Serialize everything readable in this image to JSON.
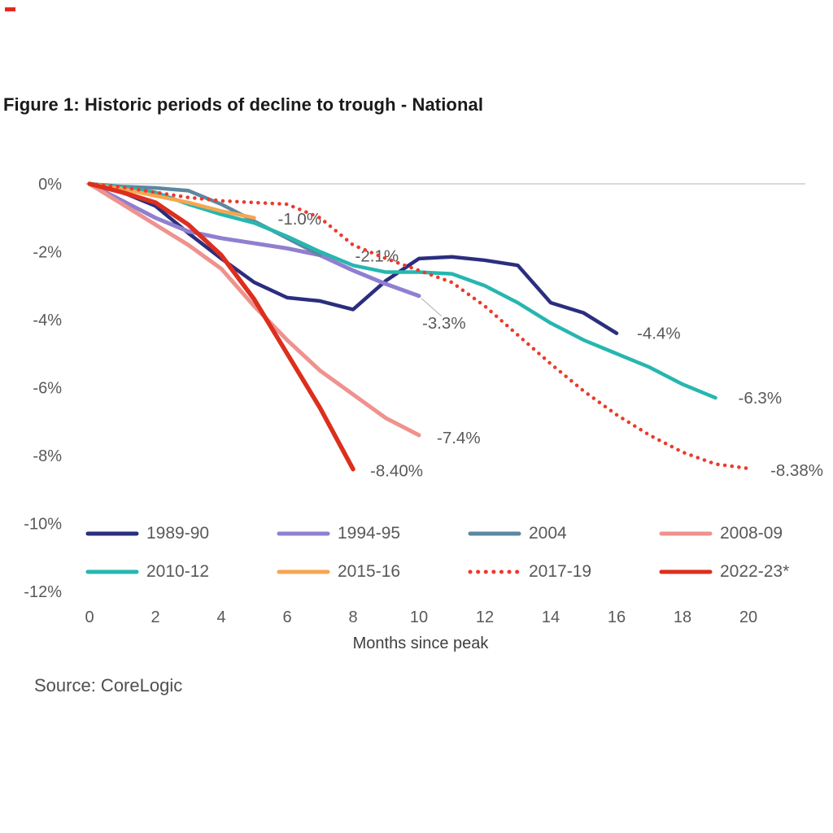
{
  "corner_mark": {
    "color": "#e8291d"
  },
  "title": "Figure 1: Historic periods of decline to trough - National",
  "source": "Source: CoreLogic",
  "chart_data": {
    "type": "line",
    "title": "Figure 1: Historic periods of decline to trough - National",
    "xlabel": "Months since peak",
    "ylabel": "",
    "xlim": [
      0,
      20
    ],
    "ylim": [
      -12,
      0
    ],
    "grid": "zero-line-only",
    "legend_position": "bottom",
    "zero_line_color": "#d9d9d9",
    "axis_text_color": "#595959",
    "x_ticks": [
      0,
      2,
      4,
      6,
      8,
      10,
      12,
      14,
      16,
      18,
      20
    ],
    "y_ticks": [
      "0%",
      "-2%",
      "-4%",
      "-6%",
      "-8%",
      "-10%",
      "-12%"
    ],
    "x_unit": "months since peak, step 1 per point starting at 0",
    "series": [
      {
        "name": "1989-90",
        "color": "#2b2e7e",
        "style": "solid",
        "width": 4.5,
        "values": [
          0,
          -0.25,
          -0.65,
          -1.45,
          -2.2,
          -2.9,
          -3.35,
          -3.45,
          -3.7,
          -2.85,
          -2.2,
          -2.15,
          -2.25,
          -2.4,
          -3.5,
          -3.8,
          -4.4
        ],
        "end_label": "-4.4%",
        "label_dx": 25,
        "label_dy": 0,
        "leader": false
      },
      {
        "name": "1994-95",
        "color": "#907fd0",
        "style": "solid",
        "width": 5,
        "values": [
          0,
          -0.5,
          -1.0,
          -1.4,
          -1.6,
          -1.75,
          -1.9,
          -2.1,
          -2.55,
          -2.95,
          -3.3
        ],
        "end_label": "-3.3%",
        "label_dx": 4,
        "label_dy": 33,
        "leader": true
      },
      {
        "name": "2004",
        "color": "#5d87a0",
        "style": "solid",
        "width": 4.5,
        "values": [
          0,
          -0.08,
          -0.12,
          -0.2,
          -0.6,
          -1.1,
          -1.6,
          -2.1
        ],
        "end_label": "-2.1%",
        "label_dx": 43,
        "label_dy": 1,
        "leader": false
      },
      {
        "name": "2008-09",
        "color": "#ef928e",
        "style": "solid",
        "width": 5,
        "values": [
          0,
          -0.6,
          -1.2,
          -1.8,
          -2.5,
          -3.6,
          -4.6,
          -5.5,
          -6.2,
          -6.9,
          -7.4
        ],
        "end_label": "-7.4%",
        "label_dx": 22,
        "label_dy": 3,
        "leader": false
      },
      {
        "name": "2010-12",
        "color": "#27b6b0",
        "style": "solid",
        "width": 4.5,
        "values": [
          0,
          -0.1,
          -0.25,
          -0.6,
          -0.9,
          -1.15,
          -1.55,
          -2.0,
          -2.4,
          -2.6,
          -2.6,
          -2.65,
          -3.0,
          -3.5,
          -4.1,
          -4.6,
          -5.0,
          -5.4,
          -5.9,
          -6.3
        ],
        "end_label": "-6.3%",
        "label_dx": 28,
        "label_dy": 0,
        "leader": false
      },
      {
        "name": "2015-16",
        "color": "#f5a651",
        "style": "solid",
        "width": 4.5,
        "values": [
          0,
          -0.15,
          -0.35,
          -0.55,
          -0.8,
          -1.0
        ],
        "end_label": "-1.0%",
        "label_dx": 29,
        "label_dy": 1,
        "leader": false
      },
      {
        "name": "2017-19",
        "color": "#ed3a2d",
        "style": "dotted",
        "width": 4.5,
        "values": [
          0,
          -0.1,
          -0.25,
          -0.4,
          -0.5,
          -0.55,
          -0.6,
          -1.0,
          -1.8,
          -2.2,
          -2.55,
          -2.9,
          -3.6,
          -4.45,
          -5.3,
          -6.1,
          -6.8,
          -7.4,
          -7.9,
          -8.25,
          -8.38
        ],
        "end_label": "-8.38%",
        "label_dx": 27,
        "label_dy": 2,
        "leader": false
      },
      {
        "name": "2022-23*",
        "color": "#dc2f1d",
        "style": "solid",
        "width": 5.5,
        "values": [
          0,
          -0.25,
          -0.55,
          -1.2,
          -2.1,
          -3.4,
          -5.0,
          -6.6,
          -8.4
        ],
        "end_label": "-8.40%",
        "label_dx": 21,
        "label_dy": 2,
        "leader": false
      }
    ]
  }
}
